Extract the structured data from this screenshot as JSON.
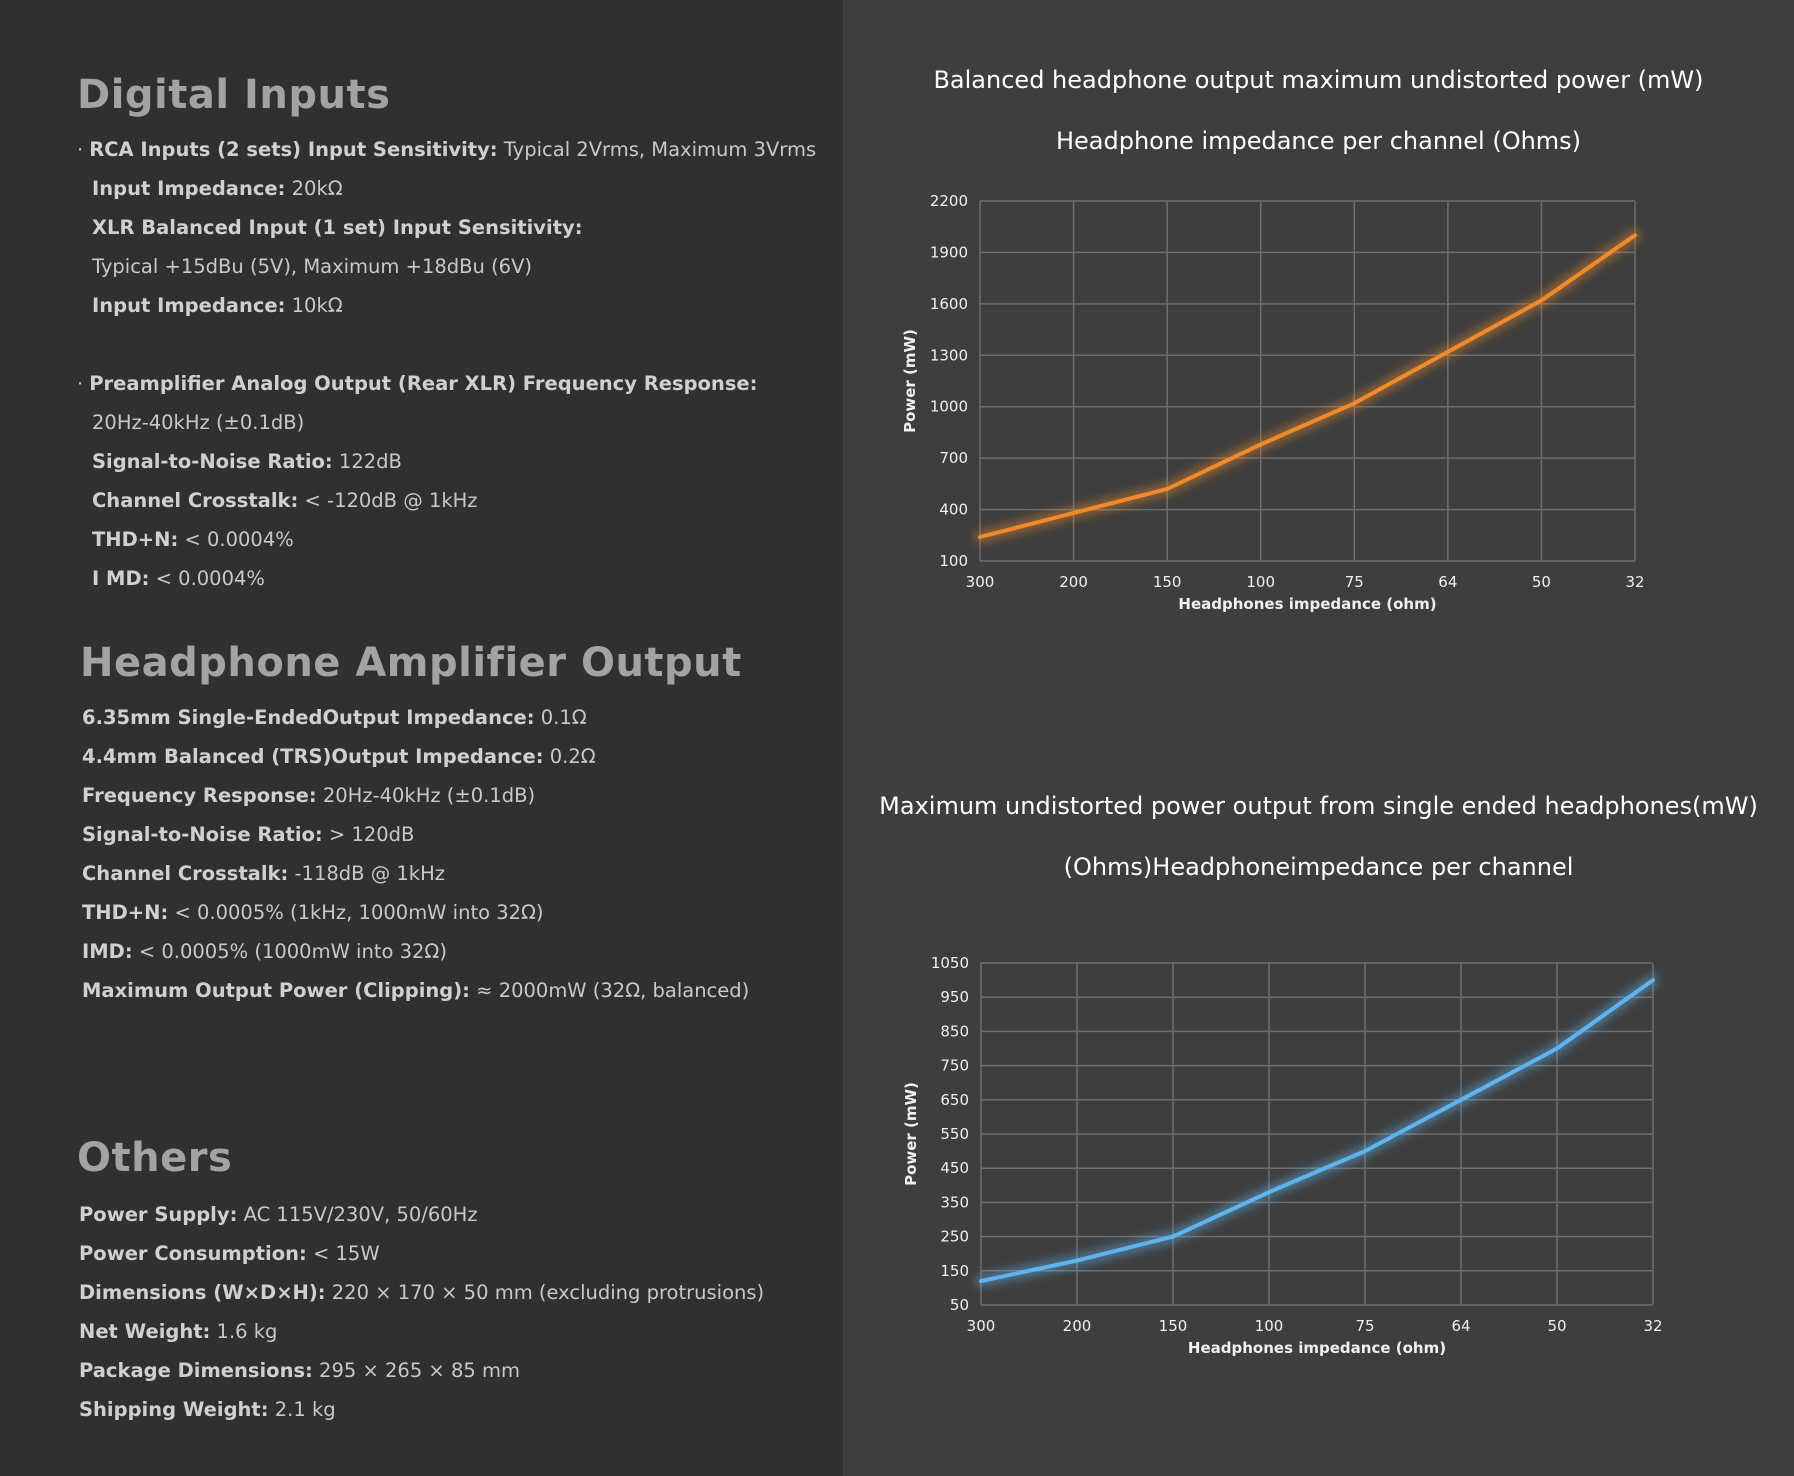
{
  "left": {
    "digital_inputs": {
      "heading": "Digital Inputs",
      "lines": [
        {
          "bullet": "·",
          "label": "RCA Inputs (2 sets) Input Sensitivity:",
          "value": " Typical 2Vrms, Maximum 3Vrms"
        },
        {
          "bullet": "",
          "label": "Input Impedance:",
          "value": " 20kΩ"
        },
        {
          "bullet": "",
          "label": "XLR Balanced Input (1 set) Input Sensitivity:",
          "value": ""
        },
        {
          "bullet": "",
          "label": "",
          "value": "Typical +15dBu (5V), Maximum +18dBu (6V)"
        },
        {
          "bullet": "",
          "label": "Input Impedance:",
          "value": " 10kΩ"
        },
        {
          "bullet": "·",
          "label": "Preamplifier Analog Output (Rear XLR) Frequency Response:",
          "value": ""
        },
        {
          "bullet": "",
          "label": "",
          "value": "20Hz-40kHz (±0.1dB)"
        },
        {
          "bullet": "",
          "label": "Signal-to-Noise Ratio:",
          "value": " 122dB"
        },
        {
          "bullet": "",
          "label": "Channel Crosstalk:",
          "value": " < -120dB @ 1kHz"
        },
        {
          "bullet": "",
          "label": "THD+N:",
          "value": " < 0.0004%"
        },
        {
          "bullet": "",
          "label": "I MD:",
          "value": " < 0.0004%"
        }
      ]
    },
    "headphone_output": {
      "heading": "Headphone Amplifier Output",
      "lines": [
        {
          "label": "6.35mm Single-EndedOutput Impedance:",
          "value": " 0.1Ω"
        },
        {
          "label": "4.4mm Balanced (TRS)Output Impedance:",
          "value": " 0.2Ω"
        },
        {
          "label": "Frequency Response:",
          "value": " 20Hz-40kHz (±0.1dB)"
        },
        {
          "label": "Signal-to-Noise Ratio:",
          "value": " > 120dB"
        },
        {
          "label": "Channel Crosstalk:",
          "value": " -118dB @ 1kHz"
        },
        {
          "label": "THD+N:",
          "value": " < 0.0005% (1kHz, 1000mW into 32Ω)"
        },
        {
          "label": "IMD:",
          "value": " < 0.0005% (1000mW into 32Ω)"
        },
        {
          "label": "Maximum Output Power (Clipping):",
          "value": " ≈ 2000mW (32Ω, balanced)"
        }
      ]
    },
    "others": {
      "heading": "Others",
      "lines": [
        {
          "label": "Power Supply:",
          "value": " AC 115V/230V, 50/60Hz"
        },
        {
          "label": "Power Consumption:",
          "value": " < 15W"
        },
        {
          "label": "Dimensions (W×D×H):",
          "value": " 220 × 170 × 50 mm (excluding protrusions)"
        },
        {
          "label": "Net Weight:",
          "value": " 1.6 kg"
        },
        {
          "label": "Package Dimensions:",
          "value": " 295 × 265 × 85 mm"
        },
        {
          "label": "Shipping Weight:",
          "value": " 2.1 kg"
        }
      ]
    }
  },
  "colors": {
    "left_bg": "#303030",
    "right_bg": "#3e3e3e",
    "balanced_line": "#f08a2c",
    "single_line": "#5fb4f0",
    "grid": "#6e6e6e"
  },
  "chart_data": [
    {
      "type": "line",
      "title": "Balanced headphone output maximum undistorted power (mW)",
      "subtitle": "Headphone impedance per channel (Ohms)",
      "xlabel": "Headphones impedance (ohm)",
      "ylabel": "Power (mW)",
      "categories": [
        "300",
        "200",
        "150",
        "100",
        "75",
        "64",
        "50",
        "32"
      ],
      "values": [
        240,
        380,
        520,
        780,
        1020,
        1320,
        1620,
        2000
      ],
      "ylim": [
        100,
        2200
      ],
      "yticks": [
        100,
        400,
        700,
        1000,
        1300,
        1600,
        1900,
        2200
      ],
      "color": "#f08a2c",
      "grid": true
    },
    {
      "type": "line",
      "title": "Maximum undistorted power output from single ended headphones(mW)",
      "subtitle": "(Ohms)Headphoneimpedance per channel",
      "xlabel": "Headphones impedance (ohm)",
      "ylabel": "Power (mW)",
      "categories": [
        "300",
        "200",
        "150",
        "100",
        "75",
        "64",
        "50",
        "32"
      ],
      "values": [
        120,
        180,
        250,
        380,
        500,
        650,
        800,
        1000
      ],
      "ylim": [
        50,
        1050
      ],
      "yticks": [
        50,
        150,
        250,
        350,
        450,
        550,
        650,
        750,
        850,
        950,
        1050
      ],
      "color": "#5fb4f0",
      "grid": true
    }
  ]
}
